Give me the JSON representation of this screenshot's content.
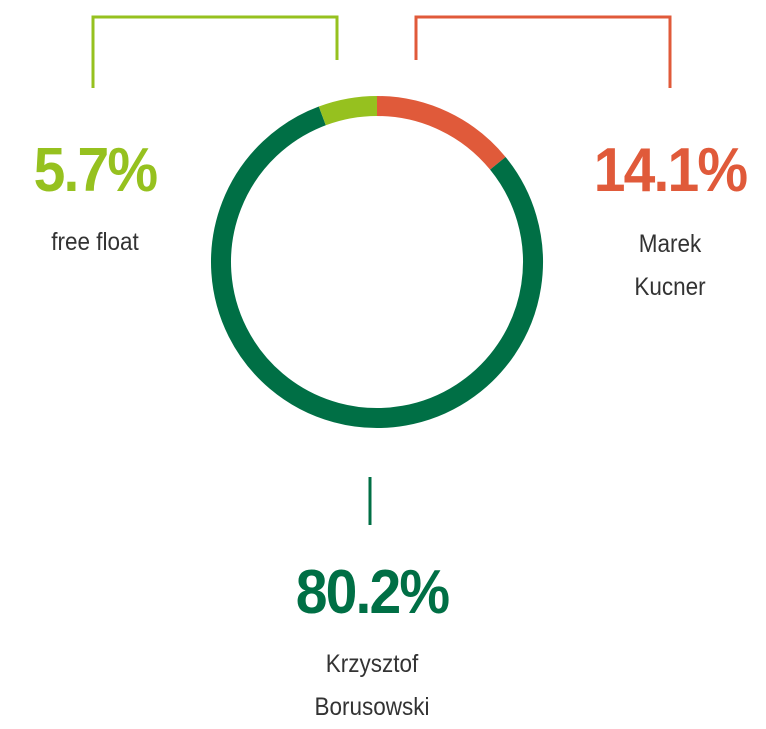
{
  "chart_data": {
    "type": "donut",
    "categories": [
      "Marek Kucner",
      "Krzysztof Borusowski",
      "free float"
    ],
    "values": [
      14.1,
      80.2,
      5.7
    ],
    "value_labels": [
      "14.1%",
      "80.2%",
      "5.7%"
    ],
    "colors": [
      "#e05a3a",
      "#006f45",
      "#96c11f"
    ]
  }
}
